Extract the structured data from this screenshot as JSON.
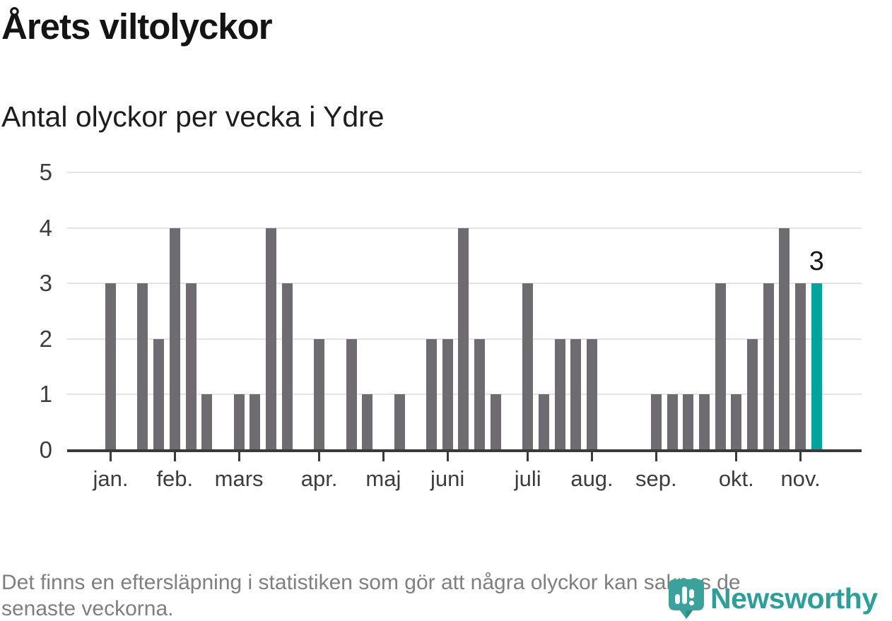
{
  "header": {
    "title": "Årets viltolyckor",
    "subtitle": "Antal olyckor per vecka i Ydre"
  },
  "chart_data": {
    "type": "bar",
    "title": "Årets viltolyckor",
    "subtitle": "Antal olyckor per vecka i Ydre",
    "x_unit": "vecka",
    "values": [
      3,
      0,
      3,
      2,
      4,
      3,
      1,
      0,
      1,
      1,
      4,
      3,
      0,
      2,
      0,
      2,
      1,
      0,
      1,
      0,
      2,
      2,
      4,
      2,
      1,
      0,
      3,
      1,
      2,
      2,
      2,
      0,
      0,
      0,
      1,
      1,
      1,
      1,
      3,
      1,
      2,
      3,
      4,
      3,
      3
    ],
    "highlight_last_bar": true,
    "last_bar_label": "3",
    "y_ticks": [
      0,
      1,
      2,
      3,
      4,
      5
    ],
    "ylim": [
      0,
      5
    ],
    "grid": "horizontal",
    "legend": "none",
    "x_tick_months": [
      {
        "label": "jan.",
        "week": 1
      },
      {
        "label": "feb.",
        "week": 5
      },
      {
        "label": "mars",
        "week": 9
      },
      {
        "label": "apr.",
        "week": 14
      },
      {
        "label": "maj",
        "week": 18
      },
      {
        "label": "juni",
        "week": 22
      },
      {
        "label": "juli",
        "week": 27
      },
      {
        "label": "aug.",
        "week": 31
      },
      {
        "label": "sep.",
        "week": 35
      },
      {
        "label": "okt.",
        "week": 40
      },
      {
        "label": "nov.",
        "week": 44
      }
    ],
    "bar_color": "#6e6b71",
    "highlight_color": "#00a49b"
  },
  "colors": {
    "background": "#ffffff",
    "grid": "#e3e3e3",
    "axis": "#3a3a3a",
    "axis_text": "#3d3d3d",
    "value_label": "#161616",
    "footer_text": "#7f7f7f",
    "logo_text": "#2f9e99",
    "logo_mark": "#3ba19b",
    "logo_mark_dark": "#2c8c88"
  },
  "footer": {
    "lines": [
      "Det finns en eftersläpning i statistiken som gör att några olyckor kan saknas de",
      "senaste veckorna."
    ]
  },
  "logo": {
    "text": "Newsworthy",
    "icon": "newsworthy-pin-barchart-icon"
  }
}
